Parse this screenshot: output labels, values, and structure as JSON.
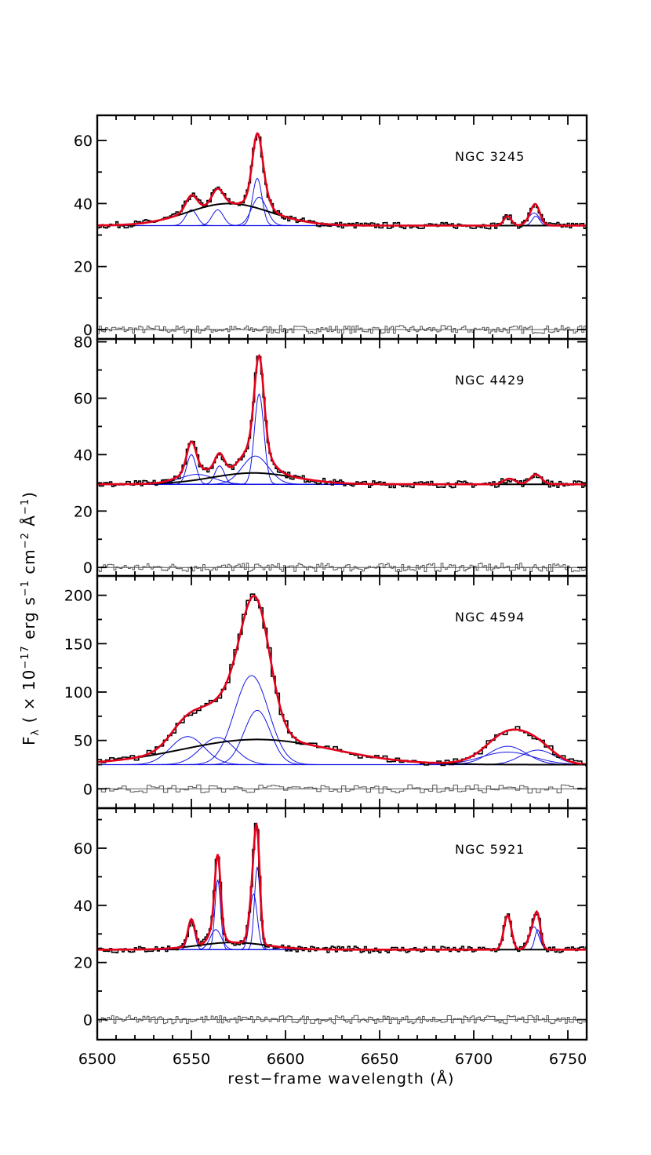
{
  "figure": {
    "xlabel": "rest−frame wavelength (Å)",
    "ylabel": {
      "main": "F",
      "sub": "λ",
      "pre": " ( × 10",
      "exp1": "−17",
      "mid1": " erg s",
      "exp2": "−1",
      "mid2": " cm",
      "exp3": "−2",
      "mid3": " Å",
      "exp4": "−1",
      "post": ")"
    },
    "x_ticks": [
      "6500",
      "6550",
      "6600",
      "6650",
      "6700",
      "6750"
    ],
    "colors": {
      "data": "#000000",
      "total_fit": "#e3001b",
      "components": "#1414e6",
      "broad": "#000000",
      "residual": "#555555"
    }
  },
  "chart_data": [
    {
      "type": "line",
      "label": "NGC 3245",
      "xlim": [
        6500,
        6760
      ],
      "ylim": [
        -3,
        68
      ],
      "yticks": [
        0,
        20,
        40,
        60
      ],
      "continuum": 33,
      "lines": [
        {
          "center": 6550,
          "amp": 5,
          "sigma": 3
        },
        {
          "center": 6564,
          "amp": 5,
          "sigma": 3
        },
        {
          "center": 6585,
          "amp": 15,
          "sigma": 2.5
        },
        {
          "center": 6586,
          "amp": 9,
          "sigma": 4
        },
        {
          "center": 6718,
          "amp": 3,
          "sigma": 2
        },
        {
          "center": 6732,
          "amp": 4,
          "sigma": 3
        },
        {
          "center": 6733,
          "amp": 3,
          "sigma": 2
        }
      ],
      "broad": {
        "center": 6570,
        "amp": 7,
        "sigma": 22
      }
    },
    {
      "type": "line",
      "label": "NGC 4429",
      "xlim": [
        6500,
        6760
      ],
      "ylim": [
        -3,
        81
      ],
      "yticks": [
        0,
        20,
        40,
        60,
        80
      ],
      "continuum": 29.5,
      "lines": [
        {
          "center": 6550,
          "amp": 10.5,
          "sigma": 2.5
        },
        {
          "center": 6565,
          "amp": 6.5,
          "sigma": 2.5
        },
        {
          "center": 6586,
          "amp": 32,
          "sigma": 2.5
        },
        {
          "center": 6584,
          "amp": 10,
          "sigma": 7
        },
        {
          "center": 6719,
          "amp": 2,
          "sigma": 3
        },
        {
          "center": 6733,
          "amp": 3.5,
          "sigma": 3
        }
      ],
      "broad": {
        "center": 6583,
        "amp": 4,
        "sigma": 22
      },
      "broad2": {
        "center": 6553,
        "amp": 3.5,
        "sigma": 9
      }
    },
    {
      "type": "line",
      "label": "NGC 4594",
      "xlim": [
        6500,
        6760
      ],
      "ylim": [
        -20,
        220
      ],
      "yticks": [
        0,
        50,
        100,
        150,
        200
      ],
      "continuum": 25,
      "lines": [
        {
          "center": 6548,
          "amp": 29,
          "sigma": 9
        },
        {
          "center": 6564,
          "amp": 28,
          "sigma": 9
        },
        {
          "center": 6582,
          "amp": 92,
          "sigma": 9
        },
        {
          "center": 6585,
          "amp": 56,
          "sigma": 7
        },
        {
          "center": 6718,
          "amp": 19,
          "sigma": 10
        },
        {
          "center": 6718,
          "amp": 13,
          "sigma": 14
        },
        {
          "center": 6734,
          "amp": 15,
          "sigma": 9
        }
      ],
      "broad": {
        "center": 6585,
        "amp": 26,
        "sigma": 40
      }
    },
    {
      "type": "line",
      "label": "NGC 5921",
      "xlim": [
        6500,
        6760
      ],
      "ylim": [
        -7,
        74
      ],
      "yticks": [
        0,
        20,
        40,
        60
      ],
      "continuum": 24.5,
      "lines": [
        {
          "center": 6550,
          "amp": 9.5,
          "sigma": 1.8
        },
        {
          "center": 6564,
          "amp": 24.5,
          "sigma": 1.5
        },
        {
          "center": 6563,
          "amp": 7,
          "sigma": 3
        },
        {
          "center": 6585,
          "amp": 29,
          "sigma": 1.5
        },
        {
          "center": 6583,
          "amp": 19.5,
          "sigma": 2
        },
        {
          "center": 6718,
          "amp": 12,
          "sigma": 2
        },
        {
          "center": 6732,
          "amp": 8,
          "sigma": 2.5
        },
        {
          "center": 6734,
          "amp": 7,
          "sigma": 1.5
        }
      ],
      "broad": {
        "center": 6572,
        "amp": 2.5,
        "sigma": 18
      }
    }
  ]
}
